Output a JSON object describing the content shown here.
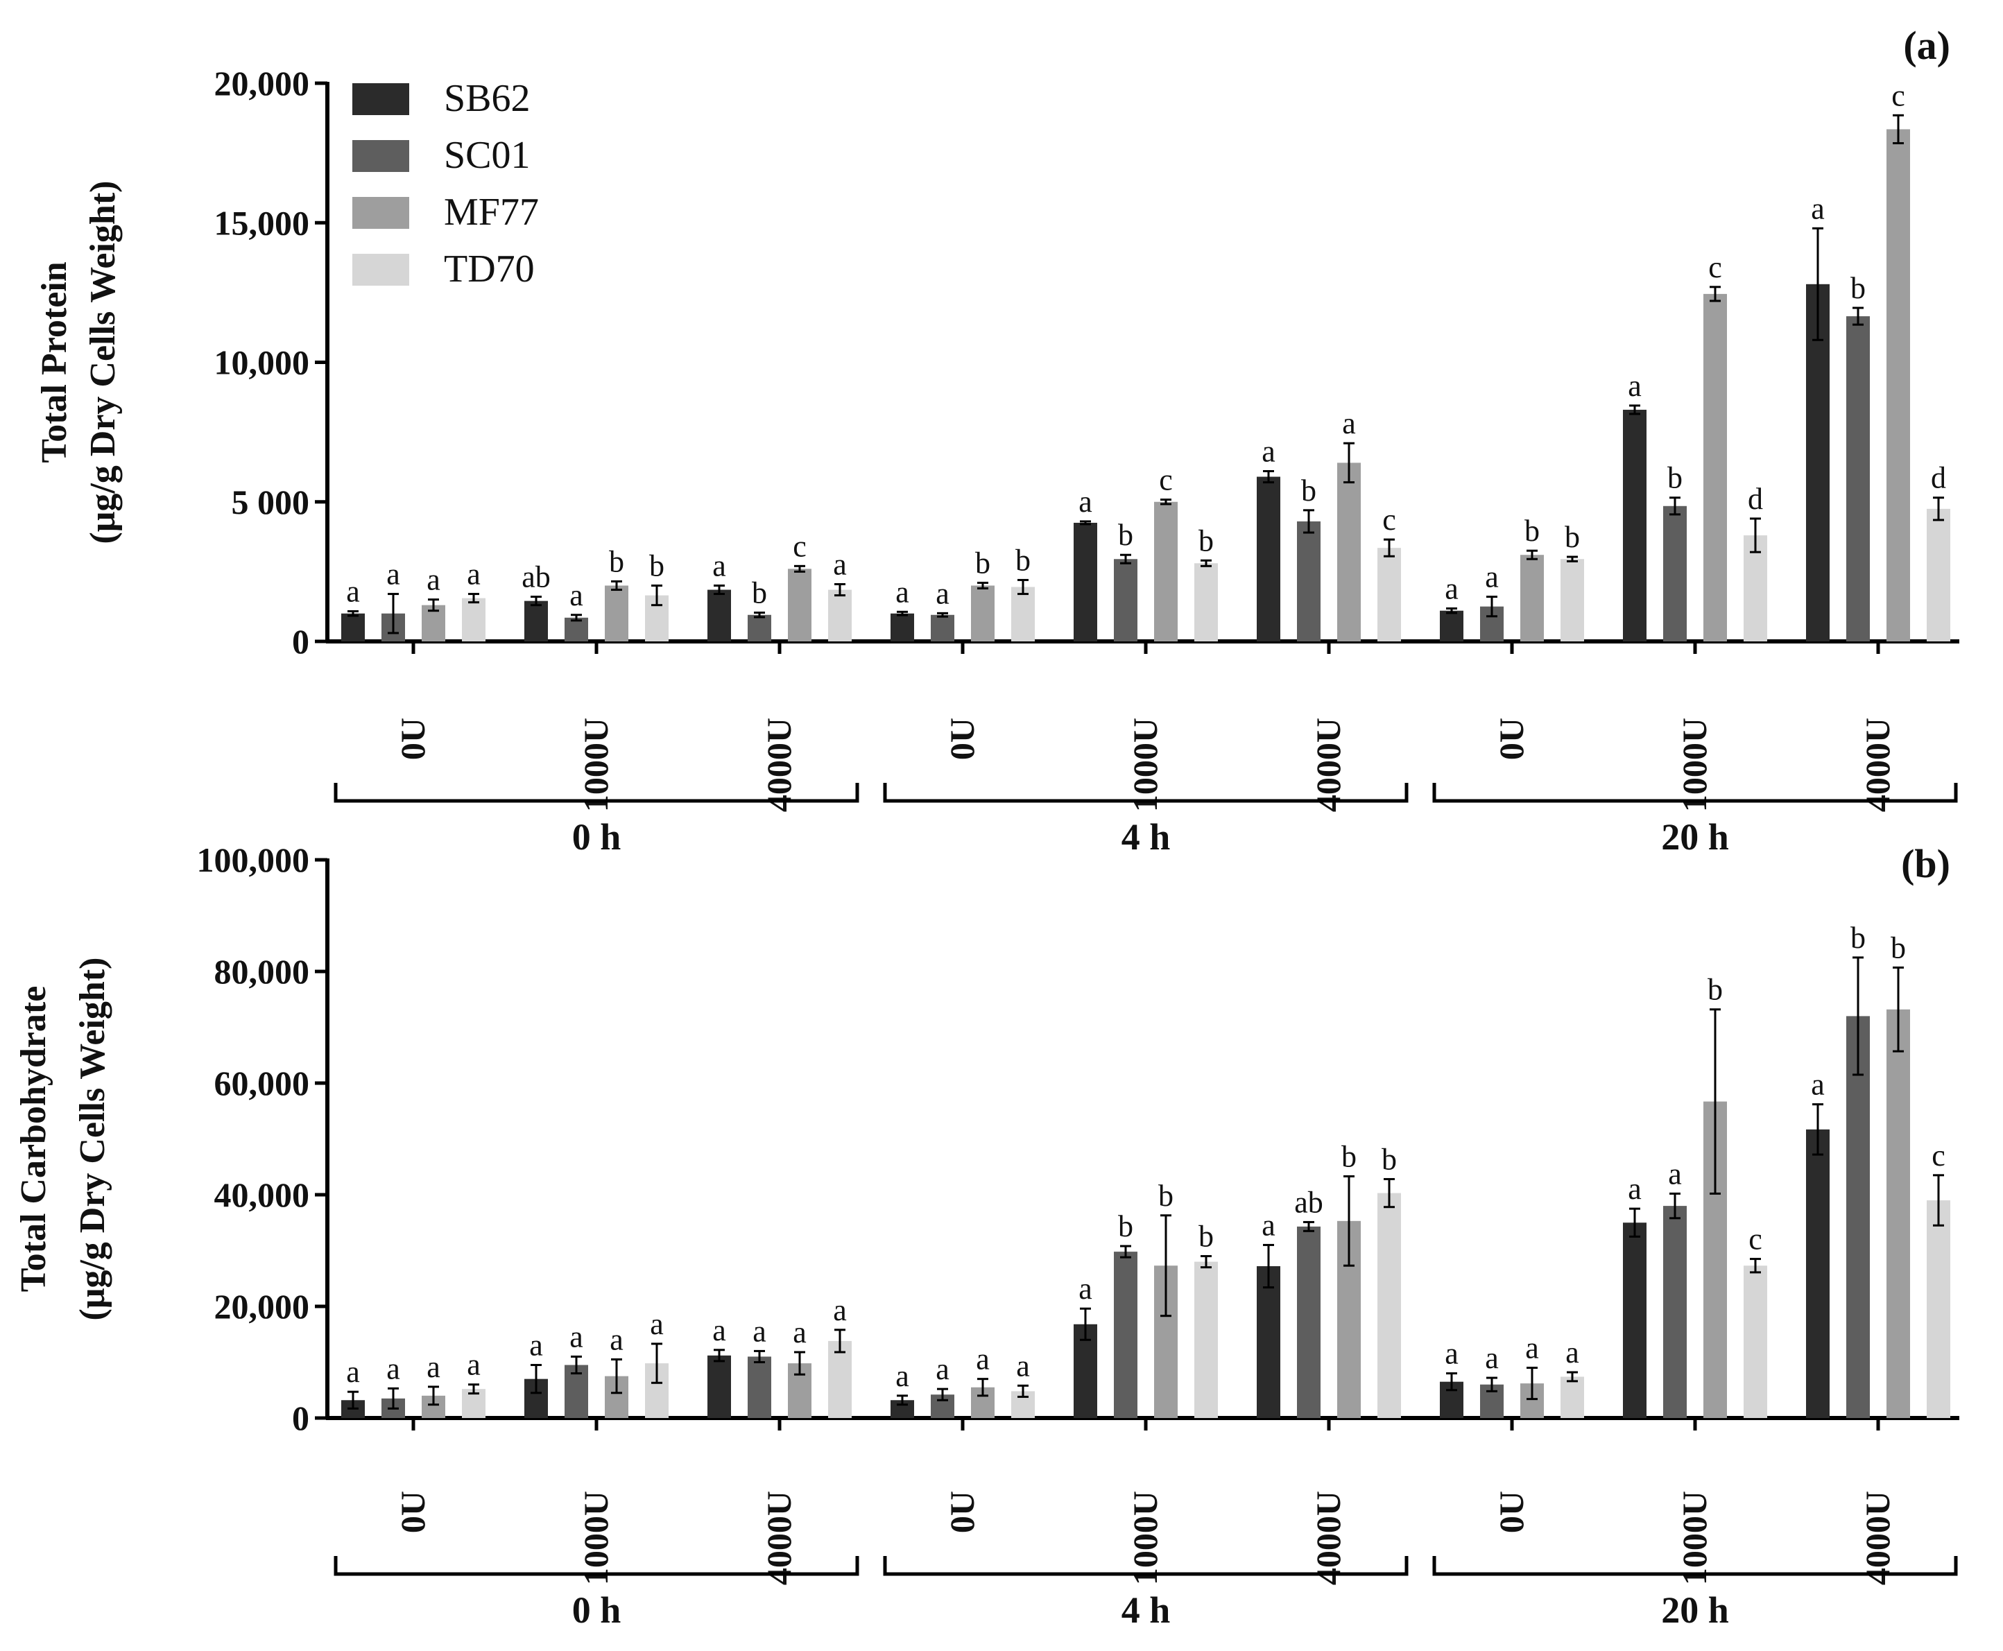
{
  "legend": {
    "items": [
      {
        "label": "SB62",
        "color": "#2b2b2b"
      },
      {
        "label": "SC01",
        "color": "#5e5e5e"
      },
      {
        "label": "MF77",
        "color": "#9e9e9e"
      },
      {
        "label": "TD70",
        "color": "#d6d6d6"
      }
    ]
  },
  "chart_data": [
    {
      "type": "bar",
      "panel_label": "(a)",
      "ylabel_line1": "Total Protein",
      "ylabel_line2": "(μg/g Dry Cells Weight)",
      "ylim": [
        0,
        20000
      ],
      "yticks": [
        {
          "value": 0,
          "label": "0"
        },
        {
          "value": 5000,
          "label": "5 000"
        },
        {
          "value": 10000,
          "label": "10,000"
        },
        {
          "value": 15000,
          "label": "15,000"
        },
        {
          "value": 20000,
          "label": "20,000"
        }
      ],
      "groups": [
        {
          "label": "0 h",
          "categories": [
            "0U",
            "1000U",
            "4000U"
          ]
        },
        {
          "label": "4 h",
          "categories": [
            "0U",
            "1000U",
            "4000U"
          ]
        },
        {
          "label": "20 h",
          "categories": [
            "0U",
            "1000U",
            "4000U"
          ]
        }
      ],
      "series": [
        {
          "name": "SB62",
          "values": [
            1000,
            1450,
            1850,
            1000,
            4250,
            5900,
            1100,
            8300,
            12800
          ],
          "errors": [
            80,
            150,
            150,
            60,
            50,
            200,
            80,
            150,
            2000
          ],
          "letters": [
            "a",
            "ab",
            "a",
            "a",
            "a",
            "a",
            "a",
            "a",
            "a"
          ]
        },
        {
          "name": "SC01",
          "values": [
            1000,
            850,
            950,
            950,
            2950,
            4300,
            1250,
            4850,
            11650
          ],
          "errors": [
            700,
            100,
            80,
            60,
            150,
            400,
            350,
            300,
            300
          ],
          "letters": [
            "a",
            "a",
            "b",
            "a",
            "b",
            "b",
            "a",
            "b",
            "b"
          ]
        },
        {
          "name": "MF77",
          "values": [
            1300,
            2000,
            2600,
            2000,
            5000,
            6400,
            3100,
            12450,
            18350
          ],
          "errors": [
            200,
            150,
            100,
            100,
            80,
            700,
            150,
            250,
            500
          ],
          "letters": [
            "a",
            "b",
            "c",
            "b",
            "c",
            "a",
            "b",
            "c",
            "c"
          ]
        },
        {
          "name": "TD70",
          "values": [
            1550,
            1650,
            1850,
            1950,
            2800,
            3350,
            2950,
            3800,
            4750
          ],
          "errors": [
            150,
            350,
            200,
            250,
            100,
            300,
            80,
            600,
            400
          ],
          "letters": [
            "a",
            "b",
            "a",
            "b",
            "b",
            "c",
            "b",
            "d",
            "d"
          ]
        }
      ]
    },
    {
      "type": "bar",
      "panel_label": "(b)",
      "ylabel_line1": "Total Carbohydrate",
      "ylabel_line2": "(μg/g Dry Cells Weight)",
      "ylim": [
        0,
        100000
      ],
      "yticks": [
        {
          "value": 0,
          "label": "0"
        },
        {
          "value": 20000,
          "label": "20,000"
        },
        {
          "value": 40000,
          "label": "40,000"
        },
        {
          "value": 60000,
          "label": "60,000"
        },
        {
          "value": 80000,
          "label": "80,000"
        },
        {
          "value": 100000,
          "label": "100,000"
        }
      ],
      "groups": [
        {
          "label": "0 h",
          "categories": [
            "0U",
            "1000U",
            "4000U"
          ]
        },
        {
          "label": "4 h",
          "categories": [
            "0U",
            "1000U",
            "4000U"
          ]
        },
        {
          "label": "20 h",
          "categories": [
            "0U",
            "1000U",
            "4000U"
          ]
        }
      ],
      "series": [
        {
          "name": "SB62",
          "values": [
            3200,
            7000,
            11200,
            3200,
            16800,
            27200,
            6500,
            35000,
            51700
          ],
          "errors": [
            1500,
            2500,
            1000,
            800,
            2800,
            3800,
            1500,
            2500,
            4500
          ],
          "letters": [
            "a",
            "a",
            "a",
            "a",
            "a",
            "a",
            "a",
            "a",
            "a"
          ]
        },
        {
          "name": "SC01",
          "values": [
            3500,
            9500,
            11000,
            4200,
            29800,
            34300,
            6000,
            38000,
            72000
          ],
          "errors": [
            1800,
            1500,
            1000,
            1000,
            1000,
            800,
            1200,
            2200,
            10500
          ],
          "letters": [
            "a",
            "a",
            "a",
            "a",
            "b",
            "ab",
            "a",
            "a",
            "b"
          ]
        },
        {
          "name": "MF77",
          "values": [
            4000,
            7500,
            9800,
            5500,
            27300,
            35300,
            6200,
            56700,
            73200
          ],
          "errors": [
            1600,
            3000,
            2000,
            1500,
            9000,
            8000,
            2800,
            16500,
            7500
          ],
          "letters": [
            "a",
            "a",
            "a",
            "a",
            "b",
            "b",
            "a",
            "b",
            "b"
          ]
        },
        {
          "name": "TD70",
          "values": [
            5200,
            9800,
            13800,
            4800,
            28000,
            40300,
            7400,
            27300,
            39000
          ],
          "errors": [
            800,
            3500,
            2000,
            1000,
            1000,
            2500,
            800,
            1200,
            4500
          ],
          "letters": [
            "a",
            "a",
            "a",
            "a",
            "b",
            "b",
            "a",
            "c",
            "c"
          ]
        }
      ]
    }
  ]
}
